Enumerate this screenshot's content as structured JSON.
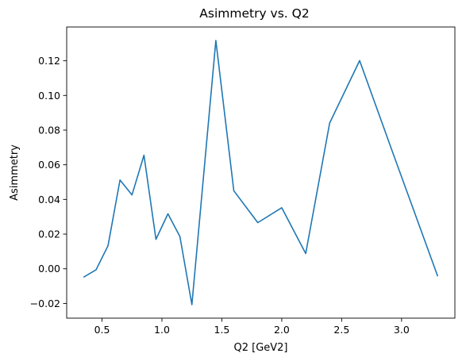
{
  "chart_data": {
    "type": "line",
    "title": "Asimmetry vs. Q2",
    "xlabel": "Q2 [GeV2]",
    "ylabel": "Asimmetry",
    "xlim": [
      0.205,
      3.445
    ],
    "ylim": [
      -0.0285,
      0.1395
    ],
    "xticks": [
      0.5,
      1.0,
      1.5,
      2.0,
      2.5,
      3.0
    ],
    "xtick_labels": [
      "0.5",
      "1.0",
      "1.5",
      "2.0",
      "2.5",
      "3.0"
    ],
    "yticks": [
      -0.02,
      0.0,
      0.02,
      0.04,
      0.06,
      0.08,
      0.1,
      0.12
    ],
    "ytick_labels": [
      "−0.02",
      "0.00",
      "0.02",
      "0.04",
      "0.06",
      "0.08",
      "0.10",
      "0.12"
    ],
    "grid": false,
    "series": [
      {
        "color": "#1f77b4",
        "x": [
          0.35,
          0.45,
          0.55,
          0.65,
          0.75,
          0.85,
          0.95,
          1.05,
          1.15,
          1.25,
          1.45,
          1.6,
          1.8,
          2.0,
          2.2,
          2.4,
          2.65,
          2.925,
          3.3
        ],
        "y": [
          -0.0047,
          -0.0006,
          0.0133,
          0.0512,
          0.0426,
          0.0655,
          0.017,
          0.0317,
          0.0186,
          -0.0207,
          0.1317,
          0.045,
          0.0266,
          0.0352,
          0.0088,
          0.0841,
          0.1201,
          0.0673,
          -0.004
        ]
      }
    ]
  }
}
